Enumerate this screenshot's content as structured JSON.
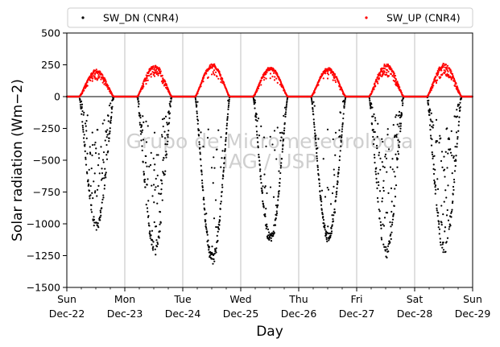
{
  "chart_data": {
    "type": "scatter",
    "title": "",
    "xlabel": "Day",
    "ylabel": "Solar radiation (Wm−2)",
    "ylim": [
      -1500,
      500
    ],
    "xlim": [
      "2019-12-22",
      "2019-12-29"
    ],
    "yticks": [
      500,
      250,
      0,
      -250,
      -500,
      -750,
      -1000,
      -1250,
      -1500
    ],
    "ytick_labels": [
      "500",
      "250",
      "0",
      "−250",
      "−500",
      "−750",
      "−1000",
      "−1250",
      "−1500"
    ],
    "xticks": [
      {
        "day": "Sun",
        "date": "Dec-22"
      },
      {
        "day": "Mon",
        "date": "Dec-23"
      },
      {
        "day": "Tue",
        "date": "Dec-24"
      },
      {
        "day": "Wed",
        "date": "Dec-25"
      },
      {
        "day": "Thu",
        "date": "Dec-26"
      },
      {
        "day": "Fri",
        "date": "Dec-27"
      },
      {
        "day": "Sat",
        "date": "Dec-28"
      },
      {
        "day": "Sun",
        "date": "Dec-29"
      }
    ],
    "grid": "vertical",
    "legend": {
      "placement": "top",
      "columns": 2
    },
    "watermark": [
      "Grupo de Micrometeorologia",
      "IAG / USP"
    ],
    "series": [
      {
        "name": "SW_DN (CNR4)",
        "color": "#000000",
        "marker": "dot",
        "daily_minimum": [
          {
            "date": "Dec-22",
            "min": -1050
          },
          {
            "date": "Dec-23",
            "min": -1250
          },
          {
            "date": "Dec-24",
            "min": -1320
          },
          {
            "date": "Dec-25",
            "min": -1160
          },
          {
            "date": "Dec-26",
            "min": -1150
          },
          {
            "date": "Dec-27",
            "min": -1270
          },
          {
            "date": "Dec-28",
            "min": -1250
          }
        ]
      },
      {
        "name": "SW_UP (CNR4)",
        "color": "#ff0000",
        "marker": "dot",
        "daily_maximum": [
          {
            "date": "Dec-22",
            "max": 215
          },
          {
            "date": "Dec-23",
            "max": 255
          },
          {
            "date": "Dec-24",
            "max": 260
          },
          {
            "date": "Dec-25",
            "max": 235
          },
          {
            "date": "Dec-26",
            "max": 230
          },
          {
            "date": "Dec-27",
            "max": 265
          },
          {
            "date": "Dec-28",
            "max": 265
          }
        ]
      }
    ]
  }
}
